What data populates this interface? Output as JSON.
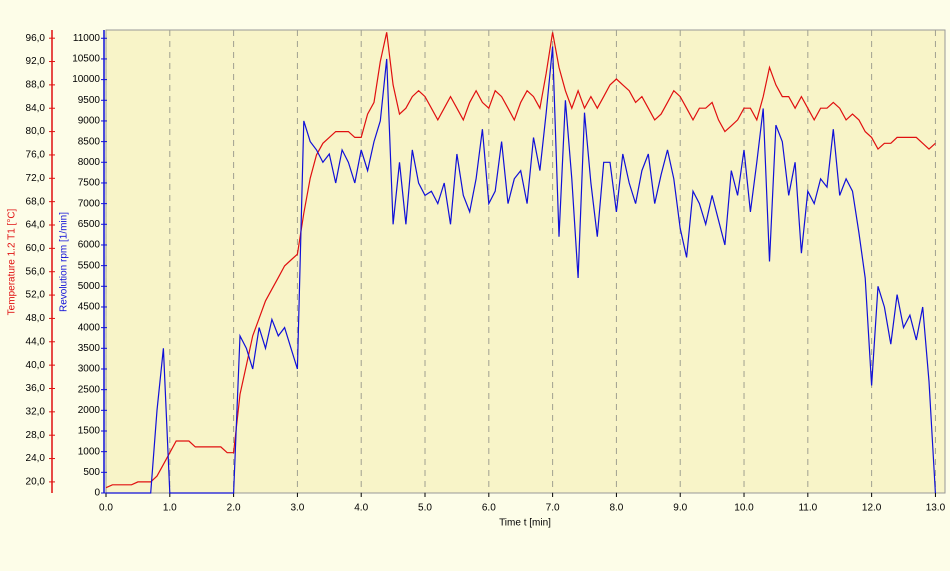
{
  "chart_data": {
    "type": "line",
    "x_label": "Time  t  [min]",
    "x": [
      0.0,
      0.1,
      0.2,
      0.3,
      0.4,
      0.5,
      0.6,
      0.7,
      0.8,
      0.9,
      1.0,
      1.1,
      1.2,
      1.3,
      1.4,
      1.5,
      1.6,
      1.7,
      1.8,
      1.9,
      2.0,
      2.1,
      2.2,
      2.3,
      2.4,
      2.5,
      2.6,
      2.7,
      2.8,
      2.9,
      3.0,
      3.1,
      3.2,
      3.3,
      3.4,
      3.5,
      3.6,
      3.7,
      3.8,
      3.9,
      4.0,
      4.1,
      4.2,
      4.3,
      4.4,
      4.5,
      4.6,
      4.7,
      4.8,
      4.9,
      5.0,
      5.1,
      5.2,
      5.3,
      5.4,
      5.5,
      5.6,
      5.7,
      5.8,
      5.9,
      6.0,
      6.1,
      6.2,
      6.3,
      6.4,
      6.5,
      6.6,
      6.7,
      6.8,
      6.9,
      7.0,
      7.1,
      7.2,
      7.3,
      7.4,
      7.5,
      7.6,
      7.7,
      7.8,
      7.9,
      8.0,
      8.1,
      8.2,
      8.3,
      8.4,
      8.5,
      8.6,
      8.7,
      8.8,
      8.9,
      9.0,
      9.1,
      9.2,
      9.3,
      9.4,
      9.5,
      9.6,
      9.7,
      9.8,
      9.9,
      10.0,
      10.1,
      10.2,
      10.3,
      10.4,
      10.5,
      10.6,
      10.7,
      10.8,
      10.9,
      11.0,
      11.1,
      11.2,
      11.3,
      11.4,
      11.5,
      11.6,
      11.7,
      11.8,
      11.9,
      12.0,
      12.1,
      12.2,
      12.3,
      12.4,
      12.5,
      12.6,
      12.7,
      12.8,
      12.9,
      13.0
    ],
    "series": [
      {
        "name": "Temperature 1.2  T1  [°C]",
        "color": "#e01010",
        "axis": "y",
        "values": [
          19,
          19.5,
          19.5,
          19.5,
          19.5,
          20,
          20,
          20,
          21,
          23,
          25,
          27,
          27,
          27,
          26,
          26,
          26,
          26,
          26,
          25,
          25,
          35,
          40,
          45,
          48,
          51,
          53,
          55,
          57,
          58,
          59,
          66,
          72,
          76,
          78,
          79,
          80,
          80,
          80,
          79,
          79,
          83,
          85,
          92,
          97,
          88,
          83,
          84,
          86,
          87,
          86,
          84,
          82,
          84,
          86,
          84,
          82,
          85,
          87,
          85,
          84,
          87,
          86,
          84,
          82,
          85,
          87,
          86,
          84,
          90,
          97,
          91,
          87,
          84,
          87,
          84,
          86,
          84,
          86,
          88,
          89,
          88,
          87,
          85,
          86,
          84,
          82,
          83,
          85,
          87,
          86,
          84,
          82,
          84,
          84,
          85,
          82,
          80,
          81,
          82,
          84,
          84,
          82,
          86,
          91,
          88,
          86,
          86,
          84,
          86,
          84,
          82,
          84,
          84,
          85,
          84,
          82,
          83,
          82,
          80,
          79,
          77,
          78,
          78,
          79,
          79,
          79,
          79,
          78,
          77,
          78
        ]
      },
      {
        "name": "Revolution  rpm  [1/min]",
        "color": "#1010d8",
        "axis": "y2",
        "values": [
          0,
          0,
          0,
          0,
          0,
          0,
          0,
          0,
          2000,
          3500,
          0,
          0,
          0,
          0,
          0,
          0,
          0,
          0,
          0,
          0,
          0,
          3800,
          3500,
          3000,
          4000,
          3500,
          4200,
          3800,
          4000,
          3500,
          3000,
          9000,
          8500,
          8300,
          8000,
          8200,
          7500,
          8300,
          8000,
          7500,
          8300,
          7800,
          8500,
          9000,
          10500,
          6500,
          8000,
          6500,
          8300,
          7500,
          7200,
          7300,
          7000,
          7500,
          6500,
          8200,
          7200,
          6800,
          7600,
          8800,
          7000,
          7300,
          8500,
          7000,
          7600,
          7800,
          7000,
          8600,
          7800,
          9200,
          10800,
          6200,
          9500,
          7600,
          5200,
          9200,
          7500,
          6200,
          8000,
          8000,
          6800,
          8200,
          7500,
          7000,
          7800,
          8200,
          7000,
          7700,
          8300,
          7600,
          6400,
          5700,
          7300,
          7000,
          6500,
          7200,
          6600,
          6000,
          7800,
          7200,
          8300,
          6800,
          8000,
          9300,
          5600,
          8900,
          8500,
          7200,
          8000,
          5800,
          7300,
          7000,
          7600,
          7400,
          8800,
          7200,
          7600,
          7300,
          6300,
          5200,
          2600,
          5000,
          4500,
          3600,
          4800,
          4000,
          4300,
          3700,
          4500,
          2700,
          0
        ]
      }
    ],
    "xlim": [
      0,
      13.15
    ],
    "xticks": [
      {
        "value": 0,
        "label": "0.0"
      },
      {
        "value": 1,
        "label": "1.0"
      },
      {
        "value": 2,
        "label": "2.0"
      },
      {
        "value": 3,
        "label": "3.0"
      },
      {
        "value": 4,
        "label": "4.0"
      },
      {
        "value": 5,
        "label": "5.0"
      },
      {
        "value": 6,
        "label": "6.0"
      },
      {
        "value": 7,
        "label": "7.0"
      },
      {
        "value": 8,
        "label": "8.0"
      },
      {
        "value": 9,
        "label": "9.0"
      },
      {
        "value": 10,
        "label": "10.0"
      },
      {
        "value": 11,
        "label": "11.0"
      },
      {
        "value": 12,
        "label": "12.0"
      },
      {
        "value": 13,
        "label": "13.0"
      }
    ],
    "ylim": [
      18.1,
      97.4
    ],
    "yticks": [
      {
        "value": 20,
        "label": "20,0"
      },
      {
        "value": 24,
        "label": "24,0"
      },
      {
        "value": 28,
        "label": "28,0"
      },
      {
        "value": 32,
        "label": "32,0"
      },
      {
        "value": 36,
        "label": "36,0"
      },
      {
        "value": 40,
        "label": "40,0"
      },
      {
        "value": 44,
        "label": "44,0"
      },
      {
        "value": 48,
        "label": "48,0"
      },
      {
        "value": 52,
        "label": "52,0"
      },
      {
        "value": 56,
        "label": "56,0"
      },
      {
        "value": 60,
        "label": "60,0"
      },
      {
        "value": 64,
        "label": "64,0"
      },
      {
        "value": 68,
        "label": "68,0"
      },
      {
        "value": 72,
        "label": "72,0"
      },
      {
        "value": 76,
        "label": "76,0"
      },
      {
        "value": 80,
        "label": "80,0"
      },
      {
        "value": 84,
        "label": "84,0"
      },
      {
        "value": 88,
        "label": "88,0"
      },
      {
        "value": 92,
        "label": "92,0"
      },
      {
        "value": 96,
        "label": "96,0"
      }
    ],
    "y2lim": [
      0,
      11200
    ],
    "y2ticks": [
      0,
      500,
      1000,
      1500,
      2000,
      2500,
      3000,
      3500,
      4000,
      4500,
      5000,
      5500,
      6000,
      6500,
      7000,
      7500,
      8000,
      8500,
      9000,
      9500,
      10000,
      10500,
      11000
    ],
    "grid": true
  }
}
